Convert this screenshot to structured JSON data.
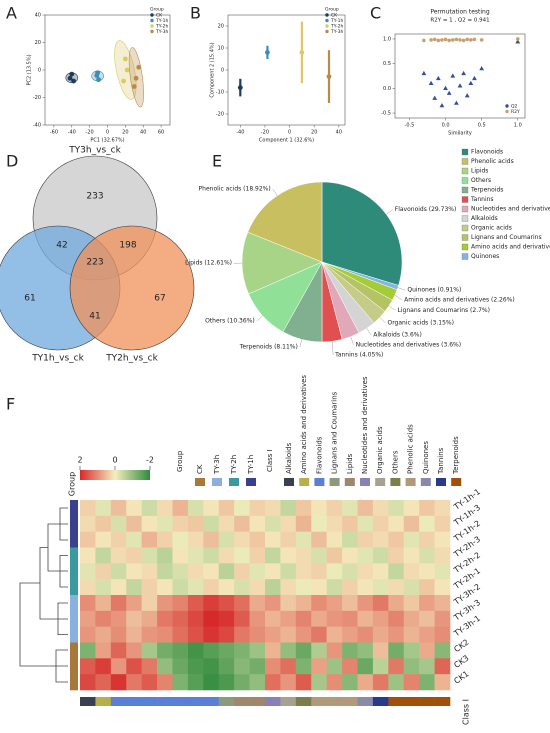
{
  "chart_data": [
    {
      "type": "scatter",
      "panel": "A",
      "xlabel": "PC1 (32.67%)",
      "ylabel": "PC2 (13.5%)",
      "xlim": [
        -70,
        70
      ],
      "xticks": [
        -60,
        -40,
        -20,
        0,
        20,
        40,
        60
      ],
      "ylim": [
        -40,
        40
      ],
      "yticks": [
        -40,
        -20,
        0,
        20,
        40
      ],
      "ellipses": true,
      "legend": "upper right",
      "legend_title": "Group",
      "series": [
        {
          "name": "CK",
          "color": "#1f3b5a",
          "x": [
            -42,
            -40,
            -38
          ],
          "values": [
            -6,
            -3,
            -8
          ]
        },
        {
          "name": "TY-1h",
          "color": "#3b8fb5",
          "x": [
            -12,
            -10,
            -11
          ],
          "values": [
            -4,
            -7,
            -2
          ]
        },
        {
          "name": "TY-2h",
          "color": "#d9c96a",
          "x": [
            18,
            22,
            20
          ],
          "values": [
            -8,
            0,
            8
          ]
        },
        {
          "name": "TY-3h",
          "color": "#b98a4a",
          "x": [
            32,
            35,
            30
          ],
          "values": [
            -6,
            2,
            -12
          ]
        }
      ]
    },
    {
      "type": "scatter",
      "panel": "B",
      "xlabel": "Component 1 (32.6%)",
      "ylabel": "Component 2 (15.4%)",
      "xlim": [
        -50,
        45
      ],
      "xticks": [
        -40,
        -20,
        0,
        20,
        40
      ],
      "ylim": [
        -25,
        25
      ],
      "yticks": [
        -20,
        -10,
        0,
        10,
        20
      ],
      "legend": "upper right",
      "legend_title": "Group",
      "series": [
        {
          "name": "CK",
          "color": "#1f3b5a",
          "x": [
            -40
          ],
          "values": [
            -8
          ],
          "errors": [
            4
          ]
        },
        {
          "name": "TY-1h",
          "color": "#3b8fb5",
          "x": [
            -18
          ],
          "values": [
            8
          ],
          "errors": [
            3
          ]
        },
        {
          "name": "TY-2h",
          "color": "#d9c96a",
          "x": [
            10
          ],
          "values": [
            8
          ],
          "errors": [
            14
          ]
        },
        {
          "name": "TY-3h",
          "color": "#b98a4a",
          "x": [
            32
          ],
          "values": [
            -3
          ],
          "errors": [
            12
          ]
        }
      ]
    },
    {
      "type": "scatter",
      "panel": "C",
      "title": "Permutation testing",
      "subtitle": "R2Y = 1 ,  Q2 = 0.941",
      "xlabel": "Similarity",
      "xlim": [
        -0.7,
        1.1
      ],
      "xticks": [
        -0.5,
        {
          "value": 0,
          "label": "0.0"
        },
        0.5,
        {
          "value": 1,
          "label": "1.0"
        }
      ],
      "ylim": [
        -0.6,
        1.1
      ],
      "yticks": [
        {
          "value": 1,
          "label": "1.0"
        },
        0.5,
        {
          "value": 0,
          "label": "0.0"
        },
        -0.5
      ],
      "legend": "lower right",
      "x": [
        -0.3,
        -0.2,
        -0.15,
        -0.1,
        -0.05,
        0,
        0.05,
        0.1,
        0.15,
        0.2,
        0.25,
        0.3,
        0.35,
        0.4,
        0.5,
        1
      ],
      "series": [
        {
          "name": "Q2",
          "color": "#3050a0",
          "marker": "triangle",
          "values": [
            0.3,
            0.1,
            -0.2,
            0.2,
            -0.35,
            0,
            -0.1,
            0.25,
            -0.3,
            0.05,
            0.3,
            -0.15,
            0.1,
            0.2,
            0.4,
            0.941
          ]
        },
        {
          "name": "R2Y",
          "color": "#c8a070",
          "marker": "circle",
          "values": [
            0.97,
            0.98,
            0.99,
            0.97,
            0.98,
            0.99,
            0.97,
            0.98,
            0.99,
            0.98,
            0.97,
            0.99,
            0.98,
            0.99,
            0.98,
            1
          ]
        }
      ]
    },
    {
      "type": "venn",
      "panel": "D",
      "sets": [
        "TY3h_vs_ck",
        "TY1h_vs_ck",
        "TY2h_vs_ck"
      ],
      "colors": [
        "#c8c8c8",
        "#6fa8dc",
        "#f0905a"
      ],
      "values": [
        233,
        42,
        198,
        223,
        61,
        41,
        67
      ]
    },
    {
      "type": "pie",
      "panel": "E",
      "categories": [
        "Flavonoids",
        "Phenolic acids",
        "Lipids",
        "Others",
        "Terpenoids",
        "Tannins",
        "Nucleotides and derivatives",
        "Alkaloids",
        "Organic acids",
        "Lignans and Coumarins",
        "Amino acids and derivatives",
        "Quinones"
      ],
      "values": [
        29.73,
        18.92,
        12.61,
        10.36,
        8.11,
        4.05,
        3.6,
        3.6,
        3.15,
        2.7,
        2.26,
        0.91
      ],
      "value_labels": [
        "Flavonoids (29.73%)",
        "Phenolic acids (18.92%)",
        "Lipids (12.61%)",
        "Others (10.36%)",
        "Terpenoids (8.11%)",
        "Tannins (4.05%)",
        "Nucleotides and derivatives (3.6%)",
        "Alkaloids (3.6%)",
        "Organic acids (3.15%)",
        "Lignans and Coumarins (2.7%)",
        "Amino acids and derivatives (2.26%)",
        "Quinones (0.91%)"
      ],
      "colors": [
        "#2e8b7a",
        "#c8c060",
        "#a8d488",
        "#90e098",
        "#80b090",
        "#e05050",
        "#e0a8b8",
        "#d4d4d4",
        "#c4cc88",
        "#b4c464",
        "#a4cc34",
        "#84b4e4"
      ]
    },
    {
      "type": "heatmap",
      "panel": "F",
      "clim": [
        2,
        -2
      ],
      "colorbar_ticks": [
        2,
        0,
        -2
      ],
      "group_title": "Group",
      "class_title": "Class I",
      "groups": [
        {
          "name": "CK",
          "color": "#a8783a"
        },
        {
          "name": "TY-3h",
          "color": "#8ab0e0"
        },
        {
          "name": "TY-2h",
          "color": "#3a9aa0"
        },
        {
          "name": "TY-1h",
          "color": "#3a4090"
        }
      ],
      "classes": [
        {
          "name": "Alkaloids",
          "color": "#3a3f52"
        },
        {
          "name": "Amino acids and derivatives",
          "color": "#b5b04a"
        },
        {
          "name": "Flavonoids",
          "color": "#5b7fd6"
        },
        {
          "name": "Lignans and Coumarins",
          "color": "#8a9a7a"
        },
        {
          "name": "Lipids",
          "color": "#a0866a"
        },
        {
          "name": "Nucleotides and derivatives",
          "color": "#8a80b8"
        },
        {
          "name": "Organic acids",
          "color": "#a8a090"
        },
        {
          "name": "Others",
          "color": "#7a7f4a"
        },
        {
          "name": "Phenolic acids",
          "color": "#b09a7a"
        },
        {
          "name": "Quinones",
          "color": "#8a8aa8"
        },
        {
          "name": "Tannins",
          "color": "#2a3a8a"
        },
        {
          "name": "Terpenoids",
          "color": "#a0500a"
        }
      ],
      "rows": [
        "TY-1h-1",
        "TY-1h-3",
        "TY-1h-2",
        "TY-2h-3",
        "TY-2h-2",
        "TY-2h-1",
        "TY-3h-2",
        "TY-3h-3",
        "TY-3h-1",
        "CK2",
        "CK3",
        "CK1"
      ],
      "row_groups": [
        3,
        3,
        3,
        2,
        2,
        2,
        1,
        1,
        1,
        0,
        0,
        0
      ],
      "column_classes": [
        0,
        1,
        2,
        2,
        2,
        2,
        2,
        2,
        2,
        3,
        4,
        4,
        5,
        6,
        7,
        8,
        8,
        8,
        9,
        10,
        11,
        11,
        11,
        11
      ],
      "matrix": [
        [
          0.3,
          -0.2,
          0.5,
          0.1,
          -0.4,
          0.2,
          0.6,
          -0.3,
          0.1,
          0.4,
          -0.1,
          0.3,
          0.2,
          -0.5,
          0.4,
          0.1,
          0.3,
          -0.2,
          0.5,
          0.2,
          -0.3,
          0.1,
          0.4,
          0.2
        ],
        [
          0.2,
          0.4,
          -0.3,
          0.5,
          0.1,
          -0.2,
          0.3,
          0.4,
          -0.4,
          0.2,
          0.5,
          0.1,
          -0.3,
          0.2,
          0.6,
          -0.1,
          0.2,
          0.4,
          -0.2,
          0.3,
          0.1,
          0.5,
          -0.1,
          0.3
        ],
        [
          0.4,
          0.1,
          0.3,
          -0.2,
          0.6,
          0.3,
          -0.1,
          0.2,
          0.5,
          -0.3,
          0.2,
          0.4,
          0.1,
          0.3,
          -0.2,
          0.5,
          0.1,
          -0.4,
          0.3,
          0.2,
          0.4,
          -0.2,
          0.3,
          0.1
        ],
        [
          0.1,
          -0.5,
          0.2,
          0.3,
          -0.3,
          -0.6,
          0.1,
          -0.2,
          -0.4,
          0.2,
          -0.1,
          0.3,
          -0.5,
          0.1,
          0.2,
          -0.3,
          0.4,
          0.1,
          -0.2,
          -0.4,
          0.3,
          0.1,
          -0.3,
          0.2
        ],
        [
          -0.2,
          0.3,
          -0.4,
          0.1,
          0.2,
          -0.5,
          -0.3,
          0.2,
          0.1,
          -0.6,
          0.3,
          -0.2,
          0.1,
          -0.4,
          0.2,
          0.3,
          -0.1,
          -0.3,
          0.2,
          0.1,
          -0.5,
          0.2,
          0.1,
          -0.2
        ],
        [
          0.2,
          -0.3,
          0.1,
          -0.5,
          0.3,
          0.1,
          -0.4,
          -0.2,
          0.3,
          0.1,
          -0.3,
          0.2,
          -0.6,
          0.2,
          -0.1,
          0.1,
          -0.4,
          0.3,
          0.1,
          -0.2,
          0.2,
          -0.3,
          0.4,
          0.1
        ],
        [
          1.0,
          0.6,
          1.2,
          0.8,
          0.3,
          0.9,
          1.1,
          1.5,
          1.8,
          1.6,
          1.3,
          0.7,
          0.9,
          0.4,
          0.6,
          1.0,
          0.8,
          0.5,
          0.9,
          1.2,
          0.7,
          0.4,
          0.8,
          0.6
        ],
        [
          0.8,
          1.1,
          0.9,
          0.5,
          0.7,
          1.2,
          1.4,
          1.7,
          2.0,
          1.9,
          1.5,
          0.9,
          0.6,
          0.8,
          1.1,
          0.7,
          0.9,
          1.0,
          0.6,
          0.8,
          1.1,
          0.7,
          0.5,
          0.9
        ],
        [
          0.9,
          0.7,
          1.0,
          0.6,
          0.9,
          1.0,
          1.3,
          1.6,
          1.9,
          1.7,
          1.2,
          1.0,
          0.8,
          0.6,
          0.9,
          1.2,
          0.6,
          0.8,
          1.0,
          0.7,
          0.9,
          0.6,
          0.8,
          1.0
        ],
        [
          -1.2,
          0.8,
          1.4,
          0.9,
          -0.8,
          -1.3,
          -1.5,
          -1.8,
          -1.6,
          -1.4,
          -1.2,
          -0.9,
          0.6,
          -1.0,
          -1.4,
          -0.7,
          0.9,
          -1.2,
          -1.0,
          0.5,
          -1.3,
          -0.8,
          0.7,
          -1.1
        ],
        [
          1.5,
          1.8,
          0.9,
          1.6,
          1.2,
          -1.0,
          -1.4,
          -1.7,
          -1.8,
          -1.5,
          -1.1,
          -1.3,
          1.0,
          1.3,
          -1.2,
          0.8,
          -0.9,
          1.1,
          -1.4,
          -0.6,
          1.2,
          -1.0,
          -0.8,
          1.4
        ],
        [
          1.7,
          1.4,
          1.9,
          1.2,
          1.5,
          1.1,
          -1.2,
          -1.6,
          -1.9,
          -1.7,
          -1.3,
          -1.0,
          1.3,
          0.9,
          1.5,
          -0.8,
          1.0,
          -1.1,
          0.7,
          1.2,
          -0.9,
          1.1,
          -1.2,
          0.6
        ]
      ]
    }
  ]
}
